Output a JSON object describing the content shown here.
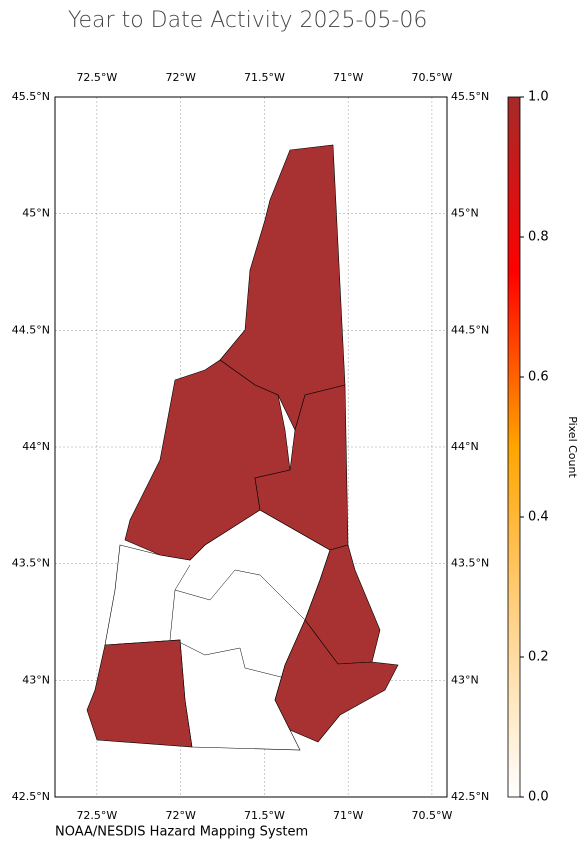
{
  "map": {
    "title": "Year to Date Activity 2025-05-06",
    "credit": "NOAA/NESDIS Hazard Mapping System",
    "xlim": [
      -72.75,
      -70.41
    ],
    "ylim": [
      42.5,
      45.5
    ],
    "xticks": [
      {
        "value": -72.5,
        "label": "72.5°W"
      },
      {
        "value": -72,
        "label": "72°W"
      },
      {
        "value": -71.5,
        "label": "71.5°W"
      },
      {
        "value": -71,
        "label": "71°W"
      },
      {
        "value": -70.5,
        "label": "70.5°W"
      }
    ],
    "yticks": [
      {
        "value": 42.5,
        "label": "42.5°N"
      },
      {
        "value": 43,
        "label": "43°N"
      },
      {
        "value": 43.5,
        "label": "43.5°N"
      },
      {
        "value": 44,
        "label": "44°N"
      },
      {
        "value": 44.5,
        "label": "44.5°N"
      },
      {
        "value": 45,
        "label": "45°N"
      },
      {
        "value": 45.5,
        "label": "45.5°N"
      }
    ],
    "active_color": "#a83232",
    "colorbar": {
      "label": "Pixel Count",
      "lim": [
        0,
        1
      ],
      "ticks": [
        {
          "value": 0,
          "label": "0.0"
        },
        0.2,
        0.4,
        0.6,
        0.8,
        {
          "value": 1,
          "label": "1.0"
        }
      ],
      "colors": [
        "#ffffff",
        "#ffd28a",
        "#ffa500",
        "#ff0000",
        "#a52a2a"
      ]
    }
  }
}
